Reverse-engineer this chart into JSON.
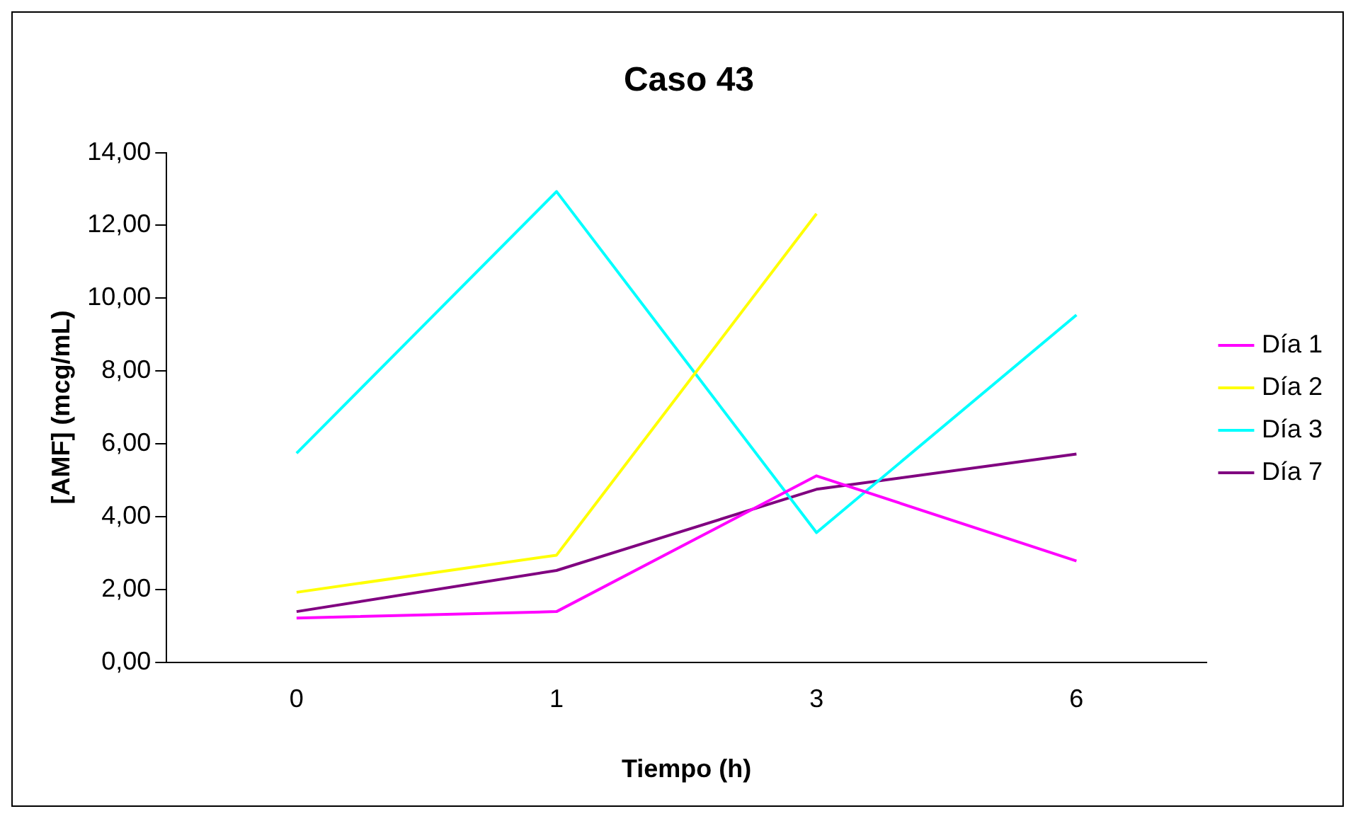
{
  "chart_data": {
    "type": "line",
    "title": "Caso 43",
    "xlabel": "Tiempo (h)",
    "ylabel": "[AMF] (mcg/mL)",
    "categories": [
      "0",
      "1",
      "3",
      "6"
    ],
    "series": [
      {
        "name": "Día 1",
        "color": "#ff00ff",
        "values": [
          1.21,
          1.39,
          5.12,
          2.78
        ]
      },
      {
        "name": "Día 2",
        "color": "#ffff00",
        "values": [
          1.92,
          2.94,
          12.32,
          null
        ]
      },
      {
        "name": "Día 3",
        "color": "#00ffff",
        "values": [
          5.74,
          12.93,
          3.56,
          9.54
        ]
      },
      {
        "name": "Día 7",
        "color": "#800080",
        "values": [
          1.39,
          2.52,
          4.75,
          5.72
        ]
      }
    ],
    "ylim": [
      0,
      14
    ],
    "yticks": [
      {
        "value": 0,
        "label": "0,00"
      },
      {
        "value": 2,
        "label": "2,00"
      },
      {
        "value": 4,
        "label": "4,00"
      },
      {
        "value": 6,
        "label": "6,00"
      },
      {
        "value": 8,
        "label": "8,00"
      },
      {
        "value": 10,
        "label": "10,00"
      },
      {
        "value": 12,
        "label": "12,00"
      },
      {
        "value": 14,
        "label": "14,00"
      }
    ],
    "grid": false,
    "legend": "right",
    "marker": "none",
    "line_style": "solid"
  }
}
